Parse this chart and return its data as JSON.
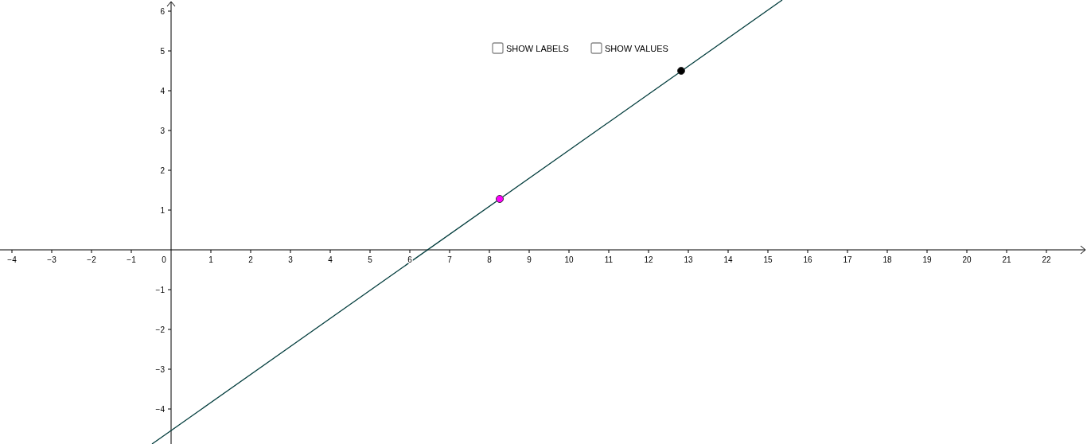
{
  "chart_data": {
    "type": "line",
    "xlim": [
      -4.3,
      23.02
    ],
    "ylim": [
      -4.88,
      6.28
    ],
    "xticks": [
      {
        "value": -4,
        "label": "−4"
      },
      {
        "value": -3,
        "label": "−3"
      },
      {
        "value": -2,
        "label": "−2"
      },
      {
        "value": -1,
        "label": "−1"
      },
      0,
      1,
      2,
      3,
      4,
      5,
      6,
      7,
      8,
      9,
      10,
      11,
      12,
      13,
      14,
      15,
      16,
      17,
      18,
      19,
      20,
      21,
      22
    ],
    "yticks": [
      {
        "value": -4,
        "label": "−4"
      },
      {
        "value": -3,
        "label": "−3"
      },
      {
        "value": -2,
        "label": "−2"
      },
      {
        "value": -1,
        "label": "−1"
      },
      {
        "value": 0,
        "label": null
      },
      1,
      2,
      3,
      4,
      5,
      6
    ],
    "grid": false,
    "series": [
      {
        "color": "#003c3c",
        "x": [
          -0.48,
          15.36
        ],
        "values": [
          -4.88,
          6.28
        ],
        "marker": "none"
      },
      {
        "type": "scatter",
        "color": "#ff00ff",
        "x": [
          8.26
        ],
        "values": [
          1.28
        ],
        "marker": "circle"
      },
      {
        "type": "scatter",
        "color": "#000000",
        "x": [
          12.82
        ],
        "values": [
          4.5
        ],
        "marker": "circle"
      }
    ],
    "annotations": [
      "SHOW LABELS",
      "SHOW VALUES"
    ]
  }
}
